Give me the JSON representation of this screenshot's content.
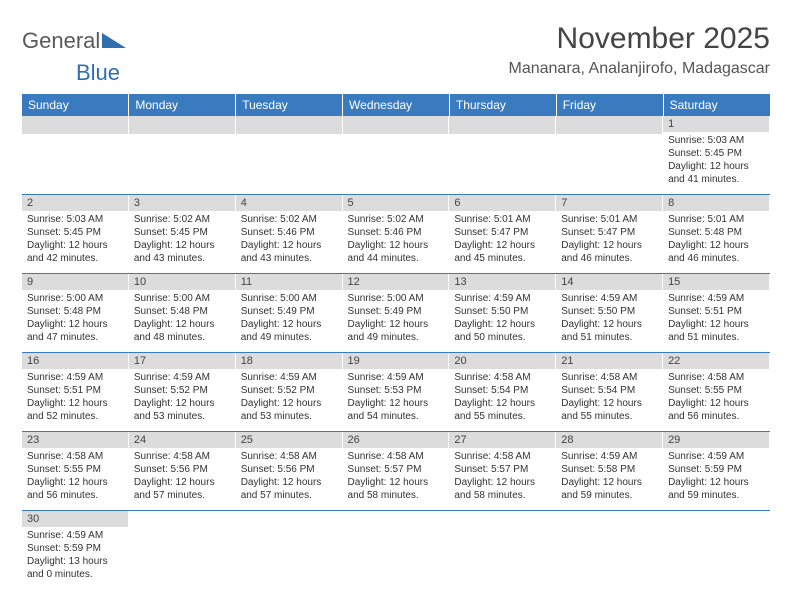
{
  "logo": {
    "text1": "General",
    "text2": "Blue"
  },
  "title": "November 2025",
  "location": "Mananara, Analanjirofo, Madagascar",
  "colors": {
    "header_bg": "#3a7bbf",
    "header_fg": "#ffffff",
    "daynum_bg": "#dcdcdc",
    "rule": "#3a7bbf",
    "logo_gray": "#5a5a5a",
    "logo_blue": "#2f6fb0"
  },
  "weekdays": [
    "Sunday",
    "Monday",
    "Tuesday",
    "Wednesday",
    "Thursday",
    "Friday",
    "Saturday"
  ],
  "weeks": [
    [
      null,
      null,
      null,
      null,
      null,
      null,
      {
        "n": "1",
        "sr": "Sunrise: 5:03 AM",
        "ss": "Sunset: 5:45 PM",
        "d1": "Daylight: 12 hours",
        "d2": "and 41 minutes."
      }
    ],
    [
      {
        "n": "2",
        "sr": "Sunrise: 5:03 AM",
        "ss": "Sunset: 5:45 PM",
        "d1": "Daylight: 12 hours",
        "d2": "and 42 minutes."
      },
      {
        "n": "3",
        "sr": "Sunrise: 5:02 AM",
        "ss": "Sunset: 5:45 PM",
        "d1": "Daylight: 12 hours",
        "d2": "and 43 minutes."
      },
      {
        "n": "4",
        "sr": "Sunrise: 5:02 AM",
        "ss": "Sunset: 5:46 PM",
        "d1": "Daylight: 12 hours",
        "d2": "and 43 minutes."
      },
      {
        "n": "5",
        "sr": "Sunrise: 5:02 AM",
        "ss": "Sunset: 5:46 PM",
        "d1": "Daylight: 12 hours",
        "d2": "and 44 minutes."
      },
      {
        "n": "6",
        "sr": "Sunrise: 5:01 AM",
        "ss": "Sunset: 5:47 PM",
        "d1": "Daylight: 12 hours",
        "d2": "and 45 minutes."
      },
      {
        "n": "7",
        "sr": "Sunrise: 5:01 AM",
        "ss": "Sunset: 5:47 PM",
        "d1": "Daylight: 12 hours",
        "d2": "and 46 minutes."
      },
      {
        "n": "8",
        "sr": "Sunrise: 5:01 AM",
        "ss": "Sunset: 5:48 PM",
        "d1": "Daylight: 12 hours",
        "d2": "and 46 minutes."
      }
    ],
    [
      {
        "n": "9",
        "sr": "Sunrise: 5:00 AM",
        "ss": "Sunset: 5:48 PM",
        "d1": "Daylight: 12 hours",
        "d2": "and 47 minutes."
      },
      {
        "n": "10",
        "sr": "Sunrise: 5:00 AM",
        "ss": "Sunset: 5:48 PM",
        "d1": "Daylight: 12 hours",
        "d2": "and 48 minutes."
      },
      {
        "n": "11",
        "sr": "Sunrise: 5:00 AM",
        "ss": "Sunset: 5:49 PM",
        "d1": "Daylight: 12 hours",
        "d2": "and 49 minutes."
      },
      {
        "n": "12",
        "sr": "Sunrise: 5:00 AM",
        "ss": "Sunset: 5:49 PM",
        "d1": "Daylight: 12 hours",
        "d2": "and 49 minutes."
      },
      {
        "n": "13",
        "sr": "Sunrise: 4:59 AM",
        "ss": "Sunset: 5:50 PM",
        "d1": "Daylight: 12 hours",
        "d2": "and 50 minutes."
      },
      {
        "n": "14",
        "sr": "Sunrise: 4:59 AM",
        "ss": "Sunset: 5:50 PM",
        "d1": "Daylight: 12 hours",
        "d2": "and 51 minutes."
      },
      {
        "n": "15",
        "sr": "Sunrise: 4:59 AM",
        "ss": "Sunset: 5:51 PM",
        "d1": "Daylight: 12 hours",
        "d2": "and 51 minutes."
      }
    ],
    [
      {
        "n": "16",
        "sr": "Sunrise: 4:59 AM",
        "ss": "Sunset: 5:51 PM",
        "d1": "Daylight: 12 hours",
        "d2": "and 52 minutes."
      },
      {
        "n": "17",
        "sr": "Sunrise: 4:59 AM",
        "ss": "Sunset: 5:52 PM",
        "d1": "Daylight: 12 hours",
        "d2": "and 53 minutes."
      },
      {
        "n": "18",
        "sr": "Sunrise: 4:59 AM",
        "ss": "Sunset: 5:52 PM",
        "d1": "Daylight: 12 hours",
        "d2": "and 53 minutes."
      },
      {
        "n": "19",
        "sr": "Sunrise: 4:59 AM",
        "ss": "Sunset: 5:53 PM",
        "d1": "Daylight: 12 hours",
        "d2": "and 54 minutes."
      },
      {
        "n": "20",
        "sr": "Sunrise: 4:58 AM",
        "ss": "Sunset: 5:54 PM",
        "d1": "Daylight: 12 hours",
        "d2": "and 55 minutes."
      },
      {
        "n": "21",
        "sr": "Sunrise: 4:58 AM",
        "ss": "Sunset: 5:54 PM",
        "d1": "Daylight: 12 hours",
        "d2": "and 55 minutes."
      },
      {
        "n": "22",
        "sr": "Sunrise: 4:58 AM",
        "ss": "Sunset: 5:55 PM",
        "d1": "Daylight: 12 hours",
        "d2": "and 56 minutes."
      }
    ],
    [
      {
        "n": "23",
        "sr": "Sunrise: 4:58 AM",
        "ss": "Sunset: 5:55 PM",
        "d1": "Daylight: 12 hours",
        "d2": "and 56 minutes."
      },
      {
        "n": "24",
        "sr": "Sunrise: 4:58 AM",
        "ss": "Sunset: 5:56 PM",
        "d1": "Daylight: 12 hours",
        "d2": "and 57 minutes."
      },
      {
        "n": "25",
        "sr": "Sunrise: 4:58 AM",
        "ss": "Sunset: 5:56 PM",
        "d1": "Daylight: 12 hours",
        "d2": "and 57 minutes."
      },
      {
        "n": "26",
        "sr": "Sunrise: 4:58 AM",
        "ss": "Sunset: 5:57 PM",
        "d1": "Daylight: 12 hours",
        "d2": "and 58 minutes."
      },
      {
        "n": "27",
        "sr": "Sunrise: 4:58 AM",
        "ss": "Sunset: 5:57 PM",
        "d1": "Daylight: 12 hours",
        "d2": "and 58 minutes."
      },
      {
        "n": "28",
        "sr": "Sunrise: 4:59 AM",
        "ss": "Sunset: 5:58 PM",
        "d1": "Daylight: 12 hours",
        "d2": "and 59 minutes."
      },
      {
        "n": "29",
        "sr": "Sunrise: 4:59 AM",
        "ss": "Sunset: 5:59 PM",
        "d1": "Daylight: 12 hours",
        "d2": "and 59 minutes."
      }
    ],
    [
      {
        "n": "30",
        "sr": "Sunrise: 4:59 AM",
        "ss": "Sunset: 5:59 PM",
        "d1": "Daylight: 13 hours",
        "d2": "and 0 minutes."
      },
      null,
      null,
      null,
      null,
      null,
      null
    ]
  ]
}
